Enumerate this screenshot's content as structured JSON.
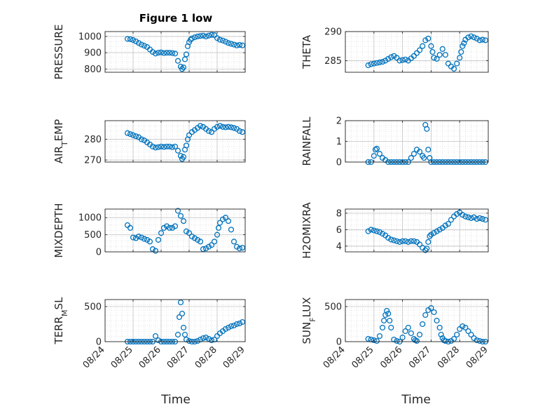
{
  "figure_title": "Figure 1 low",
  "x_axis_label": "Time",
  "x_tick_labels": [
    "08/24",
    "08/25",
    "08/26",
    "08/27",
    "08/28",
    "08/29"
  ],
  "marker_color": "#0072BD",
  "grid": true,
  "chart_data": [
    {
      "type": "scatter",
      "ylabel": "PRESSURE",
      "ylim": [
        780,
        1030
      ],
      "yticks": [
        800,
        900,
        1000
      ],
      "xlim": [
        0,
        5
      ],
      "grid": true,
      "x": [
        0.8,
        0.9,
        1.0,
        1.1,
        1.2,
        1.3,
        1.4,
        1.5,
        1.6,
        1.7,
        1.8,
        1.9,
        2.0,
        2.1,
        2.2,
        2.3,
        2.4,
        2.5,
        2.6,
        2.7,
        2.75,
        2.8,
        2.85,
        2.9,
        2.95,
        3.0,
        3.05,
        3.1,
        3.2,
        3.3,
        3.4,
        3.5,
        3.6,
        3.7,
        3.8,
        3.9,
        4.0,
        4.1,
        4.2,
        4.3,
        4.4,
        4.5,
        4.6,
        4.7,
        4.8,
        4.9
      ],
      "y": [
        985,
        983,
        978,
        970,
        960,
        950,
        943,
        935,
        920,
        905,
        895,
        900,
        902,
        898,
        900,
        900,
        898,
        895,
        850,
        815,
        800,
        810,
        860,
        890,
        940,
        965,
        980,
        988,
        995,
        1000,
        1003,
        1005,
        1000,
        1005,
        1010,
        1008,
        990,
        980,
        975,
        968,
        960,
        955,
        950,
        945,
        948,
        945
      ]
    },
    {
      "type": "scatter",
      "ylabel": "THETA",
      "ylim": [
        283,
        290
      ],
      "yticks": [
        285,
        290
      ],
      "xlim": [
        0,
        5
      ],
      "grid": true,
      "x": [
        0.8,
        0.9,
        1.0,
        1.1,
        1.2,
        1.3,
        1.4,
        1.5,
        1.6,
        1.7,
        1.8,
        1.9,
        2.0,
        2.1,
        2.2,
        2.3,
        2.4,
        2.5,
        2.6,
        2.7,
        2.8,
        2.9,
        3.0,
        3.05,
        3.1,
        3.2,
        3.3,
        3.4,
        3.5,
        3.6,
        3.7,
        3.8,
        3.9,
        4.0,
        4.05,
        4.1,
        4.15,
        4.2,
        4.3,
        4.4,
        4.5,
        4.6,
        4.7,
        4.8,
        4.9
      ],
      "y": [
        284.2,
        284.4,
        284.5,
        284.6,
        284.7,
        284.8,
        285.0,
        285.3,
        285.6,
        285.8,
        285.5,
        285.0,
        285.1,
        285.2,
        285.0,
        285.4,
        285.8,
        286.3,
        286.8,
        287.5,
        288.5,
        288.8,
        287.5,
        286.5,
        285.5,
        285.3,
        286.0,
        287.0,
        286.0,
        284.5,
        284.0,
        283.6,
        284.5,
        285.5,
        286.5,
        287.5,
        288.0,
        288.6,
        289.0,
        289.2,
        289.0,
        288.8,
        288.5,
        288.6,
        288.5
      ]
    },
    {
      "type": "scatter",
      "ylabel": "AIR_TEMP",
      "ylim": [
        269,
        289
      ],
      "yticks": [
        270,
        280
      ],
      "xlim": [
        0,
        5
      ],
      "grid": true,
      "x": [
        0.8,
        0.9,
        1.0,
        1.1,
        1.2,
        1.3,
        1.4,
        1.5,
        1.6,
        1.7,
        1.8,
        1.9,
        2.0,
        2.1,
        2.2,
        2.3,
        2.4,
        2.5,
        2.6,
        2.7,
        2.75,
        2.8,
        2.85,
        2.9,
        2.95,
        3.0,
        3.1,
        3.2,
        3.3,
        3.4,
        3.5,
        3.6,
        3.7,
        3.8,
        3.9,
        4.0,
        4.1,
        4.2,
        4.3,
        4.4,
        4.5,
        4.6,
        4.7,
        4.8,
        4.9
      ],
      "y": [
        283,
        282.5,
        282,
        281.5,
        281,
        280,
        279.5,
        278.5,
        277.5,
        276.5,
        276,
        276.2,
        276.5,
        276.3,
        276.5,
        276.5,
        276.2,
        276.5,
        274.5,
        272,
        270.5,
        271.5,
        275,
        277,
        280,
        282,
        283.5,
        284.5,
        285.5,
        286.5,
        286,
        285,
        284,
        283.5,
        285,
        286,
        286.5,
        286,
        285.8,
        286,
        285.8,
        285.5,
        285,
        284,
        283.5
      ]
    },
    {
      "type": "scatter",
      "ylabel": "RAINFALL",
      "ylim": [
        0,
        2
      ],
      "yticks": [
        0,
        1,
        2
      ],
      "xlim": [
        0,
        5
      ],
      "grid": true,
      "x": [
        0.8,
        0.9,
        1.0,
        1.05,
        1.1,
        1.2,
        1.3,
        1.4,
        1.5,
        1.6,
        1.7,
        1.8,
        1.9,
        2.0,
        2.1,
        2.2,
        2.3,
        2.4,
        2.5,
        2.6,
        2.7,
        2.75,
        2.8,
        2.85,
        2.9,
        2.95,
        3.0,
        3.1,
        3.2,
        3.3,
        3.4,
        3.5,
        3.6,
        3.7,
        3.8,
        3.9,
        4.0,
        4.1,
        4.2,
        4.3,
        4.4,
        4.5,
        4.6,
        4.7,
        4.8,
        4.9
      ],
      "y": [
        0,
        0,
        0.3,
        0.6,
        0.65,
        0.4,
        0.2,
        0.1,
        0,
        0,
        0,
        0,
        0,
        0,
        0,
        0,
        0.2,
        0.4,
        0.6,
        0.5,
        0.3,
        0.2,
        1.8,
        1.6,
        0.6,
        0.2,
        0,
        0,
        0,
        0,
        0,
        0,
        0,
        0,
        0,
        0,
        0,
        0,
        0,
        0,
        0,
        0,
        0,
        0,
        0,
        0
      ]
    },
    {
      "type": "scatter",
      "ylabel": "MIXDEPTH",
      "ylim": [
        0,
        1250
      ],
      "yticks": [
        0,
        500,
        1000
      ],
      "xlim": [
        0,
        5
      ],
      "grid": true,
      "x": [
        0.8,
        0.9,
        1.0,
        1.1,
        1.2,
        1.3,
        1.4,
        1.5,
        1.6,
        1.7,
        1.8,
        1.9,
        2.0,
        2.1,
        2.2,
        2.3,
        2.4,
        2.5,
        2.6,
        2.7,
        2.8,
        2.9,
        3.0,
        3.1,
        3.2,
        3.3,
        3.4,
        3.5,
        3.6,
        3.7,
        3.8,
        3.9,
        4.0,
        4.05,
        4.1,
        4.2,
        4.3,
        4.4,
        4.5,
        4.6,
        4.7,
        4.8,
        4.9
      ],
      "y": [
        780,
        700,
        420,
        400,
        450,
        420,
        380,
        350,
        300,
        80,
        30,
        350,
        550,
        700,
        750,
        700,
        700,
        750,
        1200,
        1050,
        900,
        600,
        550,
        450,
        400,
        350,
        300,
        80,
        100,
        150,
        200,
        300,
        500,
        700,
        850,
        950,
        1000,
        900,
        650,
        300,
        150,
        100,
        120
      ]
    },
    {
      "type": "scatter",
      "ylabel": "H2OMIXRA",
      "ylim": [
        3.3,
        8.5
      ],
      "yticks": [
        4,
        6,
        8
      ],
      "xlim": [
        0,
        5
      ],
      "grid": true,
      "x": [
        0.8,
        0.9,
        1.0,
        1.1,
        1.2,
        1.3,
        1.4,
        1.5,
        1.6,
        1.7,
        1.8,
        1.9,
        2.0,
        2.1,
        2.2,
        2.3,
        2.4,
        2.5,
        2.6,
        2.7,
        2.8,
        2.85,
        2.9,
        2.95,
        3.0,
        3.1,
        3.2,
        3.3,
        3.4,
        3.5,
        3.6,
        3.7,
        3.8,
        3.9,
        4.0,
        4.1,
        4.2,
        4.3,
        4.4,
        4.5,
        4.6,
        4.7,
        4.8,
        4.9
      ],
      "y": [
        5.8,
        6.0,
        5.9,
        5.8,
        5.7,
        5.5,
        5.3,
        5.0,
        4.8,
        4.7,
        4.6,
        4.5,
        4.6,
        4.6,
        4.5,
        4.6,
        4.6,
        4.5,
        4.2,
        3.8,
        3.5,
        3.7,
        4.5,
        5.2,
        5.4,
        5.6,
        5.8,
        6.0,
        6.2,
        6.5,
        6.7,
        7.2,
        7.6,
        7.9,
        8.1,
        7.8,
        7.6,
        7.5,
        7.4,
        7.5,
        7.3,
        7.4,
        7.3,
        7.2
      ]
    },
    {
      "type": "scatter",
      "ylabel": "TERR_MSL",
      "ylim": [
        0,
        600
      ],
      "yticks": [
        0,
        500
      ],
      "xlim": [
        0,
        5
      ],
      "grid": true,
      "x": [
        0.8,
        0.9,
        1.0,
        1.1,
        1.2,
        1.3,
        1.4,
        1.5,
        1.6,
        1.7,
        1.8,
        1.9,
        2.0,
        2.1,
        2.2,
        2.3,
        2.4,
        2.5,
        2.6,
        2.65,
        2.7,
        2.75,
        2.8,
        2.85,
        2.9,
        3.0,
        3.1,
        3.2,
        3.3,
        3.4,
        3.5,
        3.6,
        3.7,
        3.8,
        3.9,
        4.0,
        4.1,
        4.2,
        4.3,
        4.4,
        4.5,
        4.6,
        4.7,
        4.8,
        4.9
      ],
      "y": [
        0,
        0,
        0,
        0,
        0,
        0,
        0,
        0,
        0,
        0,
        80,
        20,
        0,
        0,
        0,
        0,
        0,
        0,
        100,
        350,
        560,
        400,
        200,
        100,
        30,
        10,
        0,
        0,
        10,
        30,
        50,
        60,
        40,
        20,
        30,
        80,
        120,
        150,
        180,
        200,
        220,
        230,
        250,
        260,
        280
      ]
    },
    {
      "type": "scatter",
      "ylabel": "SUN_FLUX",
      "ylim": [
        0,
        600
      ],
      "yticks": [
        0,
        500
      ],
      "xlim": [
        0,
        5
      ],
      "grid": true,
      "x": [
        0.8,
        0.9,
        1.0,
        1.1,
        1.2,
        1.3,
        1.35,
        1.4,
        1.45,
        1.5,
        1.55,
        1.6,
        1.7,
        1.8,
        1.9,
        2.0,
        2.1,
        2.2,
        2.3,
        2.4,
        2.45,
        2.5,
        2.6,
        2.7,
        2.8,
        2.9,
        3.0,
        3.1,
        3.2,
        3.3,
        3.35,
        3.4,
        3.45,
        3.5,
        3.6,
        3.7,
        3.8,
        3.9,
        4.0,
        4.1,
        4.2,
        4.3,
        4.4,
        4.5,
        4.6,
        4.7,
        4.8,
        4.9
      ],
      "y": [
        40,
        30,
        20,
        10,
        80,
        200,
        300,
        380,
        440,
        400,
        300,
        200,
        30,
        10,
        0,
        60,
        150,
        200,
        120,
        40,
        20,
        10,
        100,
        250,
        380,
        450,
        480,
        420,
        300,
        200,
        100,
        50,
        20,
        10,
        0,
        10,
        40,
        100,
        180,
        220,
        200,
        150,
        100,
        50,
        20,
        10,
        0,
        0
      ]
    }
  ]
}
